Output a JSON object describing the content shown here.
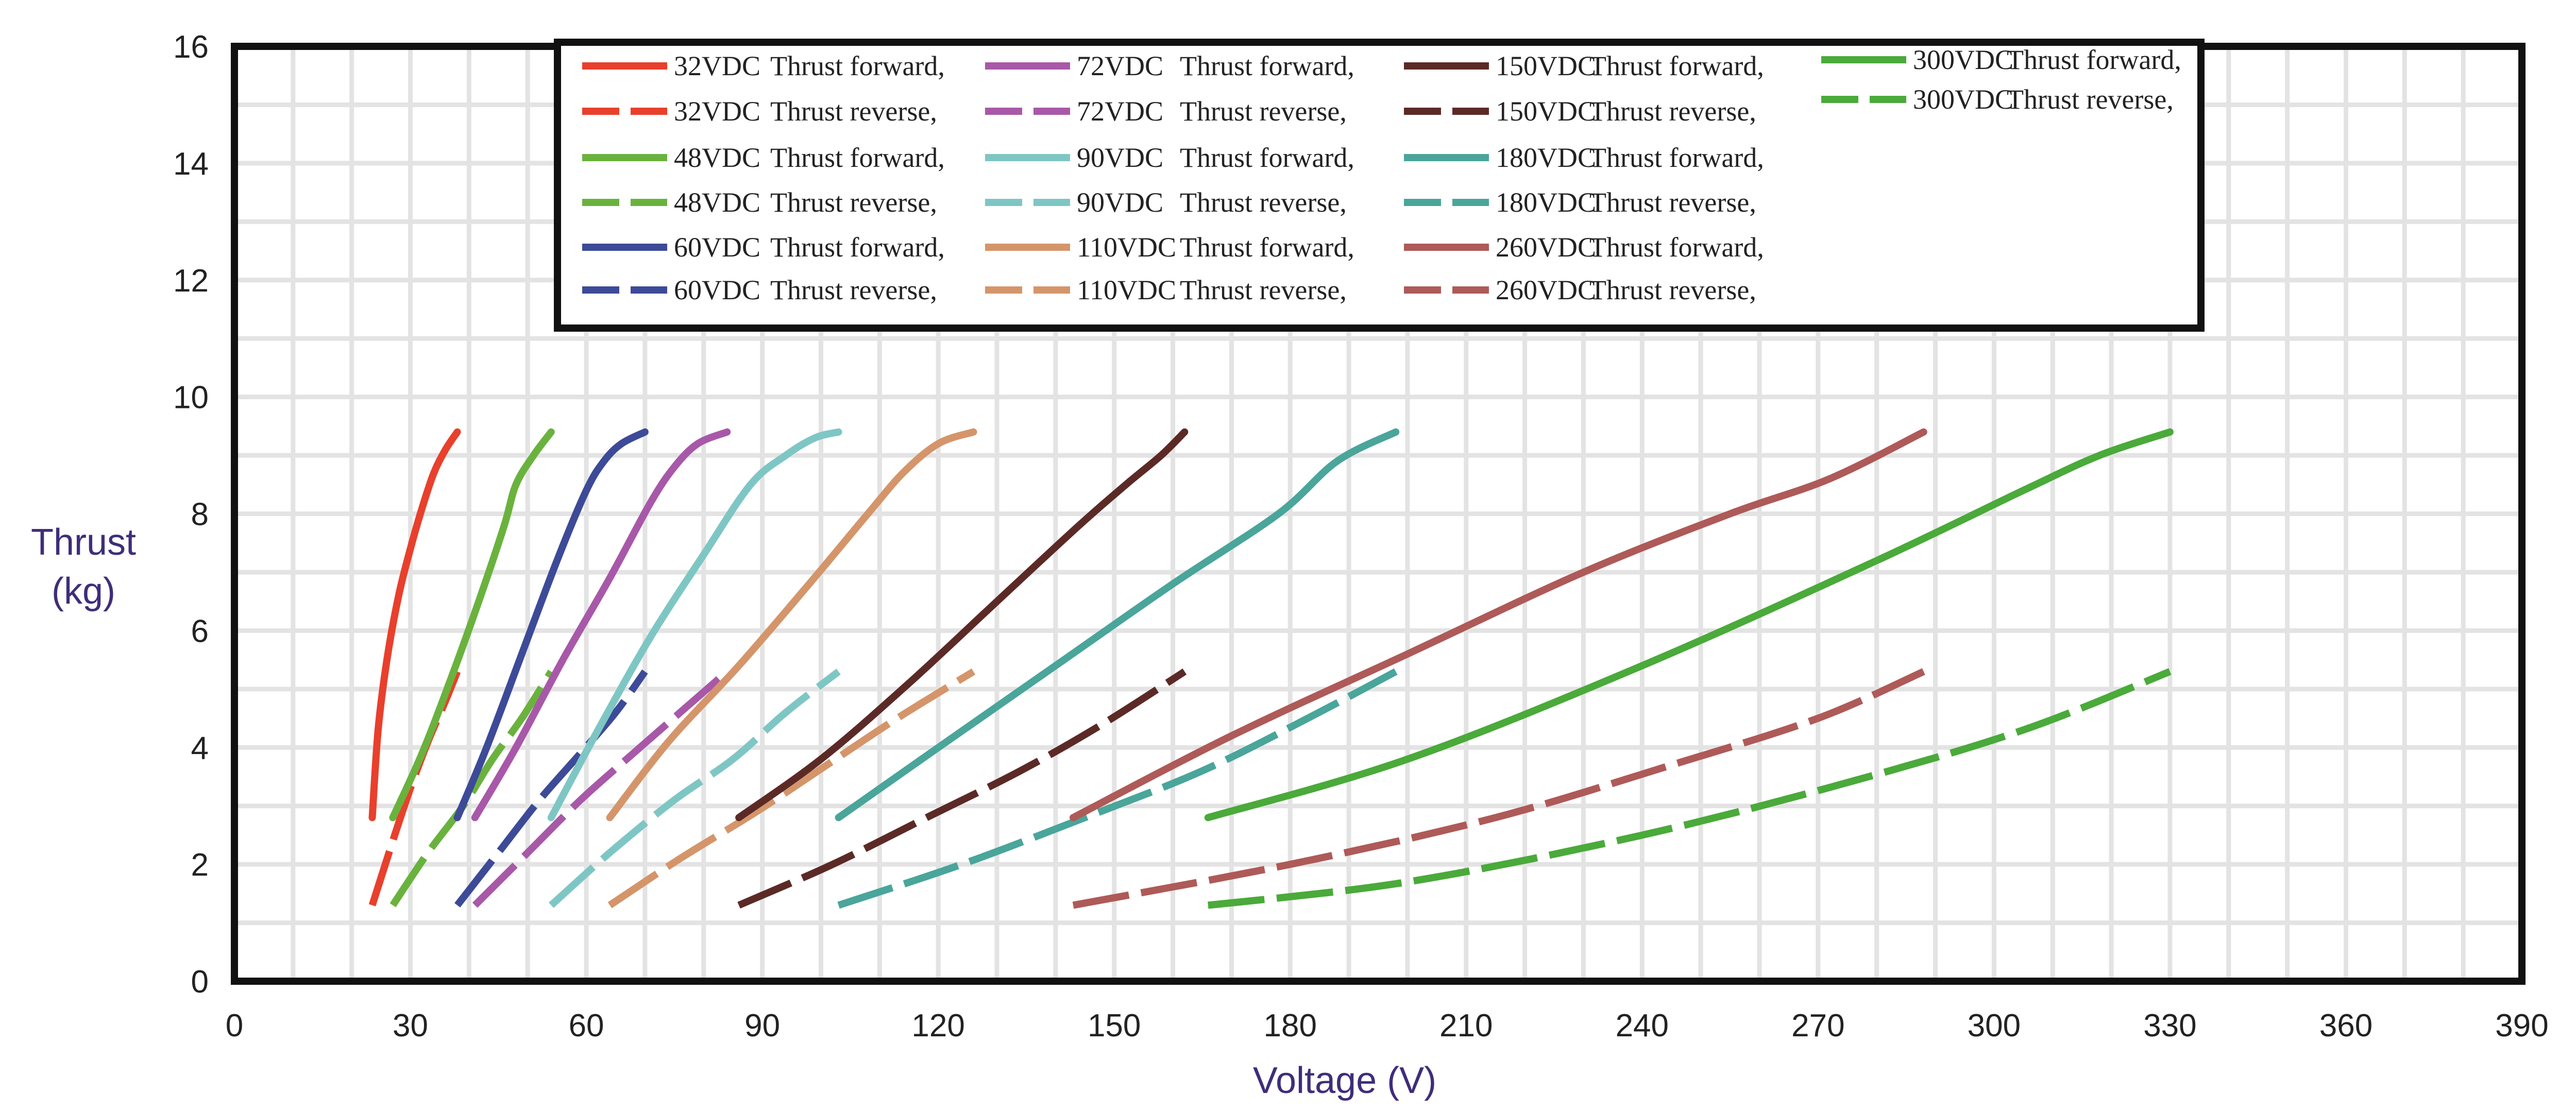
{
  "chart_data": {
    "type": "line",
    "title": "",
    "xlabel": "Voltage (V)",
    "ylabel_lines": [
      "Thrust",
      "(kg)"
    ],
    "xlim": [
      0,
      390
    ],
    "ylim": [
      0,
      16
    ],
    "xticks": [
      "0",
      "30",
      "60",
      "90",
      "120",
      "150",
      "180",
      "210",
      "240",
      "270",
      "300",
      "330",
      "360",
      "390"
    ],
    "yticks": [
      "0",
      "2",
      "4",
      "6",
      "8",
      "10",
      "12",
      "14",
      "16"
    ],
    "grid": true,
    "legend": "top",
    "series": [
      {
        "name": "32VDC",
        "label": "Thrust forward,",
        "color": "#e8402c",
        "dash": false,
        "points": [
          [
            23.5,
            2.8
          ],
          [
            24.5,
            4.3
          ],
          [
            26,
            5.5
          ],
          [
            28,
            6.6
          ],
          [
            30,
            7.4
          ],
          [
            32,
            8.1
          ],
          [
            34,
            8.7
          ],
          [
            36,
            9.1
          ],
          [
            38,
            9.4
          ]
        ]
      },
      {
        "name": "32VDC",
        "label": "Thrust reverse,",
        "color": "#e8402c",
        "dash": true,
        "points": [
          [
            23.5,
            1.3
          ],
          [
            27,
            2.4
          ],
          [
            30,
            3.3
          ],
          [
            33,
            4.1
          ],
          [
            36,
            4.8
          ],
          [
            38,
            5.3
          ]
        ]
      },
      {
        "name": "48VDC",
        "label": "Thrust forward,",
        "color": "#6ab23e",
        "dash": false,
        "points": [
          [
            27,
            2.8
          ],
          [
            32,
            3.9
          ],
          [
            37,
            5.2
          ],
          [
            42,
            6.6
          ],
          [
            46,
            7.8
          ],
          [
            48,
            8.5
          ],
          [
            51,
            9.0
          ],
          [
            54,
            9.4
          ]
        ]
      },
      {
        "name": "48VDC",
        "label": "Thrust reverse,",
        "color": "#6ab23e",
        "dash": true,
        "points": [
          [
            27,
            1.3
          ],
          [
            33,
            2.2
          ],
          [
            39,
            3.0
          ],
          [
            44,
            3.8
          ],
          [
            49,
            4.5
          ],
          [
            54,
            5.3
          ]
        ]
      },
      {
        "name": "60VDC",
        "label": "Thrust forward,",
        "color": "#3d4a98",
        "dash": false,
        "points": [
          [
            38,
            2.8
          ],
          [
            43,
            4.0
          ],
          [
            49,
            5.6
          ],
          [
            55,
            7.2
          ],
          [
            60,
            8.4
          ],
          [
            63,
            8.9
          ],
          [
            66,
            9.2
          ],
          [
            70,
            9.4
          ]
        ]
      },
      {
        "name": "60VDC",
        "label": "Thrust reverse,",
        "color": "#3d4a98",
        "dash": true,
        "points": [
          [
            38,
            1.3
          ],
          [
            45,
            2.2
          ],
          [
            52,
            3.1
          ],
          [
            59,
            3.9
          ],
          [
            65,
            4.6
          ],
          [
            70,
            5.3
          ]
        ]
      },
      {
        "name": "72VDC",
        "label": "Thrust forward,",
        "color": "#a858a8",
        "dash": false,
        "points": [
          [
            41,
            2.8
          ],
          [
            48,
            4.0
          ],
          [
            56,
            5.5
          ],
          [
            64,
            6.9
          ],
          [
            71,
            8.2
          ],
          [
            75,
            8.8
          ],
          [
            79,
            9.2
          ],
          [
            84,
            9.4
          ]
        ]
      },
      {
        "name": "72VDC",
        "label": "Thrust reverse,",
        "color": "#a858a8",
        "dash": true,
        "points": [
          [
            41,
            1.3
          ],
          [
            50,
            2.2
          ],
          [
            59,
            3.1
          ],
          [
            68,
            3.9
          ],
          [
            76,
            4.6
          ],
          [
            84,
            5.3
          ]
        ]
      },
      {
        "name": "90VDC",
        "label": "Thrust forward,",
        "color": "#7ec6c4",
        "dash": false,
        "points": [
          [
            54,
            2.8
          ],
          [
            62,
            4.3
          ],
          [
            71,
            5.9
          ],
          [
            80,
            7.3
          ],
          [
            88,
            8.5
          ],
          [
            94,
            9.0
          ],
          [
            99,
            9.3
          ],
          [
            103,
            9.4
          ]
        ]
      },
      {
        "name": "90VDC",
        "label": "Thrust reverse,",
        "color": "#7ec6c4",
        "dash": true,
        "points": [
          [
            54,
            1.3
          ],
          [
            64,
            2.2
          ],
          [
            75,
            3.1
          ],
          [
            85,
            3.8
          ],
          [
            94,
            4.6
          ],
          [
            103,
            5.3
          ]
        ]
      },
      {
        "name": "110VDC",
        "label": "Thrust forward,",
        "color": "#d4956a",
        "dash": false,
        "points": [
          [
            64,
            2.8
          ],
          [
            74,
            4.1
          ],
          [
            86,
            5.4
          ],
          [
            98,
            6.8
          ],
          [
            108,
            8.0
          ],
          [
            114,
            8.7
          ],
          [
            120,
            9.2
          ],
          [
            126,
            9.4
          ]
        ]
      },
      {
        "name": "110VDC",
        "label": "Thrust reverse,",
        "color": "#d4956a",
        "dash": true,
        "points": [
          [
            64,
            1.3
          ],
          [
            76,
            2.1
          ],
          [
            89,
            2.9
          ],
          [
            101,
            3.7
          ],
          [
            113,
            4.5
          ],
          [
            126,
            5.3
          ]
        ]
      },
      {
        "name": "150VDC",
        "label": "Thrust forward,",
        "color": "#5c2a26",
        "dash": false,
        "points": [
          [
            86,
            2.8
          ],
          [
            100,
            3.8
          ],
          [
            115,
            5.1
          ],
          [
            130,
            6.5
          ],
          [
            144,
            7.8
          ],
          [
            152,
            8.5
          ],
          [
            158,
            9.0
          ],
          [
            162,
            9.4
          ]
        ]
      },
      {
        "name": "150VDC",
        "label": "Thrust reverse,",
        "color": "#5c2a26",
        "dash": true,
        "points": [
          [
            86,
            1.3
          ],
          [
            102,
            2.0
          ],
          [
            118,
            2.8
          ],
          [
            134,
            3.6
          ],
          [
            148,
            4.4
          ],
          [
            162,
            5.3
          ]
        ]
      },
      {
        "name": "180VDC",
        "label": "Thrust forward,",
        "color": "#4aa59a",
        "dash": false,
        "points": [
          [
            103,
            2.8
          ],
          [
            120,
            4.0
          ],
          [
            140,
            5.4
          ],
          [
            160,
            6.8
          ],
          [
            178,
            8.0
          ],
          [
            188,
            8.9
          ],
          [
            198,
            9.4
          ]
        ]
      },
      {
        "name": "180VDC",
        "label": "Thrust reverse,",
        "color": "#4aa59a",
        "dash": true,
        "points": [
          [
            103,
            1.3
          ],
          [
            124,
            2.0
          ],
          [
            145,
            2.8
          ],
          [
            165,
            3.6
          ],
          [
            183,
            4.5
          ],
          [
            198,
            5.3
          ]
        ]
      },
      {
        "name": "260VDC",
        "label": "Thrust forward,",
        "color": "#ae5a58",
        "dash": false,
        "points": [
          [
            143,
            2.8
          ],
          [
            170,
            4.2
          ],
          [
            200,
            5.6
          ],
          [
            230,
            7.0
          ],
          [
            255,
            8.0
          ],
          [
            272,
            8.6
          ],
          [
            288,
            9.4
          ]
        ]
      },
      {
        "name": "260VDC",
        "label": "Thrust reverse,",
        "color": "#ae5a58",
        "dash": true,
        "points": [
          [
            143,
            1.3
          ],
          [
            180,
            2.0
          ],
          [
            215,
            2.8
          ],
          [
            245,
            3.7
          ],
          [
            270,
            4.5
          ],
          [
            288,
            5.3
          ]
        ]
      },
      {
        "name": "300VDC",
        "label": "Thrust forward,",
        "color": "#4aaa3a",
        "dash": false,
        "points": [
          [
            166,
            2.8
          ],
          [
            200,
            3.8
          ],
          [
            240,
            5.4
          ],
          [
            280,
            7.2
          ],
          [
            305,
            8.4
          ],
          [
            318,
            9.0
          ],
          [
            330,
            9.4
          ]
        ]
      },
      {
        "name": "300VDC",
        "label": "Thrust reverse,",
        "color": "#4aaa3a",
        "dash": true,
        "points": [
          [
            166,
            1.3
          ],
          [
            200,
            1.7
          ],
          [
            240,
            2.5
          ],
          [
            275,
            3.4
          ],
          [
            305,
            4.3
          ],
          [
            330,
            5.3
          ]
        ]
      }
    ]
  }
}
